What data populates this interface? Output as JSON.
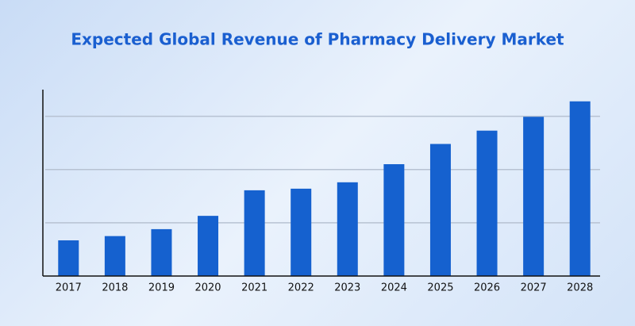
{
  "chart_data": {
    "type": "bar",
    "title": "Expected Global Revenue of Pharmacy Delivery Market",
    "categories": [
      "2017",
      "2018",
      "2019",
      "2020",
      "2021",
      "2022",
      "2023",
      "2024",
      "2025",
      "2026",
      "2027",
      "2028"
    ],
    "values": [
      0.67,
      0.75,
      0.88,
      1.13,
      1.61,
      1.64,
      1.76,
      2.1,
      2.48,
      2.73,
      2.99,
      3.28
    ],
    "color": "#1561cf",
    "ylim": [
      0,
      3.5
    ],
    "yticks": [
      1,
      2,
      3
    ],
    "show_tick_labels": false,
    "grid": true
  }
}
